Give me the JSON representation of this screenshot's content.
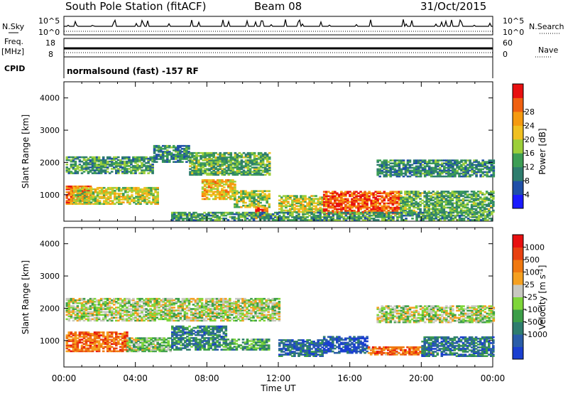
{
  "header": {
    "station": "South Pole Station (fitACF)",
    "beam": "Beam 08",
    "date": "31/Oct/2015"
  },
  "status_panels": {
    "nsky_label": "N.Sky",
    "nsearch_label": "N.Search",
    "freq_label_1": "Freq.",
    "freq_label_2": "[MHz]",
    "nave_label": "Nave",
    "cpid_label": "CPID",
    "left_ticks_top": [
      "10^5",
      "10^0"
    ],
    "right_ticks_top": [
      "10^5",
      "10^0"
    ],
    "left_ticks_freq": [
      "18",
      "8"
    ],
    "right_ticks_nave": [
      "60",
      "0"
    ],
    "mode_text": "normalsound (fast) -157 RF"
  },
  "chart_data": [
    {
      "type": "heatmap",
      "panel": "power",
      "ylabel": "Slant Range [km]",
      "xlabel": "",
      "xlim": [
        "00:00",
        "24:00"
      ],
      "ylim": [
        180,
        4500
      ],
      "y_ticks": [
        "1000",
        "2000",
        "3000",
        "4000"
      ],
      "x_ticks": [
        "00:00",
        "04:00",
        "08:00",
        "12:00",
        "16:00",
        "20:00",
        "00:00"
      ],
      "colorbar": {
        "label": "Power [dB]",
        "ticks": [
          "4",
          "8",
          "12",
          "16",
          "20",
          "24",
          "28"
        ],
        "colors": [
          "#1a1aff",
          "#1f4fa8",
          "#2e7d6e",
          "#3d9e55",
          "#9ccf3a",
          "#f0c020",
          "#f59a10",
          "#f06010",
          "#e81010"
        ]
      },
      "regions": [
        {
          "t0": 0.1,
          "t1": 1.5,
          "r0": 700,
          "r1": 1250,
          "level": 0.8
        },
        {
          "t0": 0.5,
          "t1": 5.3,
          "r0": 700,
          "r1": 1200,
          "level": 0.55
        },
        {
          "t0": 0.1,
          "t1": 5.0,
          "r0": 1650,
          "r1": 2150,
          "level": 0.35
        },
        {
          "t0": 5.0,
          "t1": 7.0,
          "r0": 2000,
          "r1": 2500,
          "level": 0.3
        },
        {
          "t0": 7.0,
          "t1": 11.5,
          "r0": 1600,
          "r1": 2300,
          "level": 0.4
        },
        {
          "t0": 7.7,
          "t1": 9.5,
          "r0": 850,
          "r1": 1450,
          "level": 0.65
        },
        {
          "t0": 9.5,
          "t1": 11.5,
          "r0": 600,
          "r1": 1100,
          "level": 0.5
        },
        {
          "t0": 10.7,
          "t1": 11.3,
          "r0": 250,
          "r1": 650,
          "level": 0.8
        },
        {
          "t0": 12.0,
          "t1": 14.5,
          "r0": 450,
          "r1": 950,
          "level": 0.55
        },
        {
          "t0": 14.5,
          "t1": 18.8,
          "r0": 400,
          "r1": 1100,
          "level": 0.85
        },
        {
          "t0": 18.8,
          "t1": 24.0,
          "r0": 450,
          "r1": 1100,
          "level": 0.4
        },
        {
          "t0": 17.5,
          "t1": 24.0,
          "r0": 1550,
          "r1": 2050,
          "level": 0.3
        },
        {
          "t0": 6.0,
          "t1": 24.0,
          "r0": 200,
          "r1": 450,
          "level": 0.35
        }
      ]
    },
    {
      "type": "heatmap",
      "panel": "velocity",
      "ylabel": "Slant Range [km]",
      "xlabel": "Time UT",
      "xlim": [
        "00:00",
        "24:00"
      ],
      "ylim": [
        180,
        4500
      ],
      "y_ticks": [
        "1000",
        "2000",
        "3000",
        "4000"
      ],
      "x_ticks": [
        "00:00",
        "04:00",
        "08:00",
        "12:00",
        "16:00",
        "20:00",
        "00:00"
      ],
      "colorbar": {
        "label": "Velocity [m s^-1]",
        "ticks": [
          "1000",
          "500",
          "100",
          "25",
          "-25",
          "-100",
          "-500",
          "-1000"
        ],
        "colors": [
          "#1a3fd0",
          "#2a5da8",
          "#2e7d6e",
          "#3c9e48",
          "#7ed63a",
          "#c8c8c0",
          "#f5a020",
          "#f07810",
          "#e84010",
          "#e81010"
        ]
      },
      "regions": [
        {
          "t0": 0.1,
          "t1": 3.5,
          "r0": 650,
          "r1": 1250,
          "level": 0.78
        },
        {
          "t0": 3.5,
          "t1": 6.0,
          "r0": 650,
          "r1": 1100,
          "level": 0.45
        },
        {
          "t0": 0.1,
          "t1": 12.0,
          "r0": 1600,
          "r1": 2300,
          "level": 0.5
        },
        {
          "t0": 6.0,
          "t1": 9.0,
          "r0": 700,
          "r1": 1450,
          "level": 0.25
        },
        {
          "t0": 9.0,
          "t1": 11.5,
          "r0": 700,
          "r1": 1050,
          "level": 0.35
        },
        {
          "t0": 12.0,
          "t1": 14.5,
          "r0": 500,
          "r1": 1000,
          "level": 0.2
        },
        {
          "t0": 14.5,
          "t1": 17.0,
          "r0": 600,
          "r1": 1100,
          "level": 0.1
        },
        {
          "t0": 17.0,
          "t1": 20.5,
          "r0": 550,
          "r1": 800,
          "level": 0.75
        },
        {
          "t0": 17.5,
          "t1": 24.0,
          "r0": 1550,
          "r1": 2050,
          "level": 0.5
        },
        {
          "t0": 20.0,
          "t1": 24.0,
          "r0": 500,
          "r1": 1100,
          "level": 0.22
        }
      ]
    }
  ]
}
